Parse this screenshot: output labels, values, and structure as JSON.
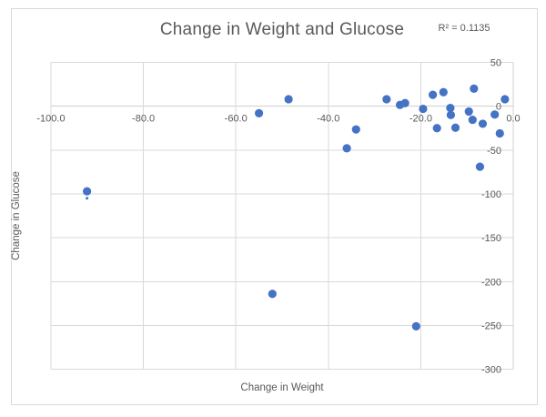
{
  "chart": {
    "title": "Change in Weight and Glucose",
    "r_squared_label": "R² = 0.1135",
    "xlabel": "Change in Weight",
    "ylabel": "Change in Glucose"
  },
  "chart_data": {
    "type": "scatter",
    "title": "Change in Weight and Glucose",
    "annotation": "R² = 0.1135",
    "r_squared": 0.1135,
    "xlabel": "Change in Weight",
    "ylabel": "Change in Glucose",
    "xlim": [
      -100,
      0
    ],
    "ylim": [
      -300,
      50
    ],
    "x_ticks": [
      -100,
      -80,
      -60,
      -40,
      -20,
      0
    ],
    "x_tick_labels": [
      "-100.0",
      "-80.0",
      "-60.0",
      "-40.0",
      "-20.0",
      "0.0"
    ],
    "y_ticks": [
      50,
      0,
      -50,
      -100,
      -150,
      -200,
      -250,
      -300
    ],
    "y_tick_labels": [
      "50",
      "0",
      "-50",
      "-100",
      "-150",
      "-200",
      "-250",
      "-300"
    ],
    "grid": true,
    "legend": "none",
    "marker_color": "#4472C4",
    "points": [
      [
        -92.2,
        -97
      ],
      [
        -55.0,
        -8
      ],
      [
        -52.1,
        -214
      ],
      [
        -48.6,
        8
      ],
      [
        -36.0,
        -48
      ],
      [
        -34.0,
        -26.5
      ],
      [
        -27.4,
        8
      ],
      [
        -24.5,
        1.5
      ],
      [
        -23.4,
        3.5
      ],
      [
        -21.0,
        -251
      ],
      [
        -19.5,
        -3
      ],
      [
        -17.4,
        13
      ],
      [
        -16.5,
        -25
      ],
      [
        -15.1,
        16
      ],
      [
        -13.6,
        -2
      ],
      [
        -13.5,
        -10
      ],
      [
        -12.5,
        -24.5
      ],
      [
        -9.6,
        -6
      ],
      [
        -8.8,
        -15.5
      ],
      [
        -8.5,
        20
      ],
      [
        -7.2,
        -69
      ],
      [
        -6.6,
        -20
      ],
      [
        -4.0,
        -9.5
      ],
      [
        -2.9,
        -31
      ],
      [
        -1.8,
        8
      ]
    ],
    "small_stray_dot": [
      -92.2,
      -105
    ]
  },
  "colors": {
    "marker": "#4472C4",
    "gridline": "#D9D9D9",
    "axis_line": "#D0D0D0",
    "text": "#595959",
    "chart_border": "#D9D9D9"
  }
}
